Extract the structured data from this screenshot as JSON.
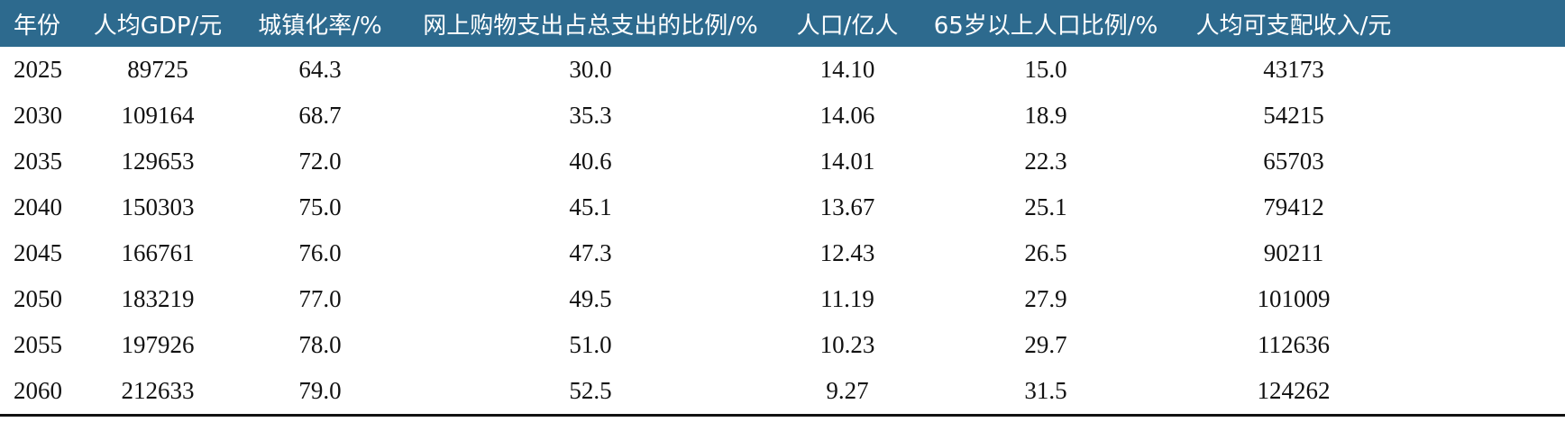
{
  "table": {
    "header": [
      "年份",
      "人均GDP/元",
      "城镇化率/%",
      "网上购物支出占总支出的比例/%",
      "人口/亿人",
      "65岁以上人口比例/%",
      "人均可支配收入/元"
    ],
    "rows": [
      [
        "2025",
        "89725",
        "64.3",
        "30.0",
        "14.10",
        "15.0",
        "43173"
      ],
      [
        "2030",
        "109164",
        "68.7",
        "35.3",
        "14.06",
        "18.9",
        "54215"
      ],
      [
        "2035",
        "129653",
        "72.0",
        "40.6",
        "14.01",
        "22.3",
        "65703"
      ],
      [
        "2040",
        "150303",
        "75.0",
        "45.1",
        "13.67",
        "25.1",
        "79412"
      ],
      [
        "2045",
        "166761",
        "76.0",
        "47.3",
        "12.43",
        "26.5",
        "90211"
      ],
      [
        "2050",
        "183219",
        "77.0",
        "49.5",
        "11.19",
        "27.9",
        "101009"
      ],
      [
        "2055",
        "197926",
        "78.0",
        "51.0",
        "10.23",
        "29.7",
        "112636"
      ],
      [
        "2060",
        "212633",
        "79.0",
        "52.5",
        "9.27",
        "31.5",
        "124262"
      ]
    ]
  }
}
